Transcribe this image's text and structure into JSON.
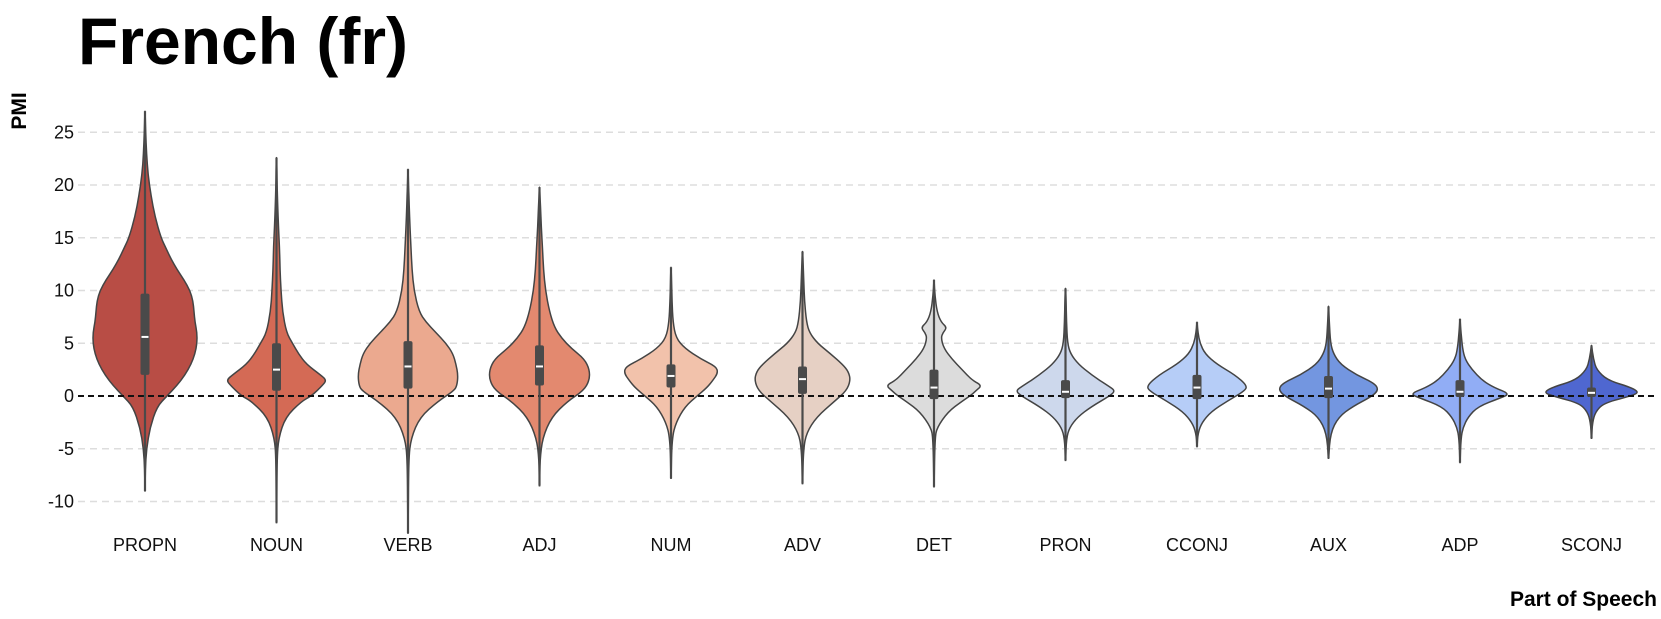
{
  "chart_data": {
    "type": "violin",
    "title": "French (fr)",
    "xlabel": "Part of Speech",
    "ylabel": "PMI",
    "ylim": [
      -14,
      28
    ],
    "yticks": [
      -10,
      -5,
      0,
      5,
      10,
      15,
      20,
      25
    ],
    "reference_line": 0,
    "grid": true,
    "categories": [
      "PROPN",
      "NOUN",
      "VERB",
      "ADJ",
      "NUM",
      "ADV",
      "DET",
      "PRON",
      "CCONJ",
      "AUX",
      "ADP",
      "SCONJ"
    ],
    "series": [
      {
        "name": "PROPN",
        "color": "#b84d45",
        "min": -9,
        "max": 27,
        "q1": 2,
        "median": 5.6,
        "q3": 9.7,
        "profile": [
          [
            -9,
            0.1
          ],
          [
            -7,
            0.3
          ],
          [
            -5,
            1.5
          ],
          [
            -3,
            5
          ],
          [
            -1,
            12
          ],
          [
            0,
            22
          ],
          [
            1,
            32
          ],
          [
            2,
            40
          ],
          [
            3,
            46
          ],
          [
            4,
            50
          ],
          [
            5,
            52
          ],
          [
            6,
            52
          ],
          [
            7,
            50
          ],
          [
            8,
            49
          ],
          [
            9,
            48
          ],
          [
            10,
            45
          ],
          [
            11,
            39
          ],
          [
            12,
            32
          ],
          [
            13,
            26
          ],
          [
            14,
            21
          ],
          [
            15,
            16
          ],
          [
            17,
            10
          ],
          [
            19,
            6
          ],
          [
            21,
            3
          ],
          [
            23,
            1.5
          ],
          [
            25,
            0.7
          ],
          [
            27,
            0.1
          ]
        ]
      },
      {
        "name": "NOUN",
        "color": "#d46a55",
        "min": -12,
        "max": 22.6,
        "q1": 0.5,
        "median": 2.5,
        "q3": 5,
        "profile": [
          [
            -12,
            0.1
          ],
          [
            -6,
            0.5
          ],
          [
            -4,
            2
          ],
          [
            -2,
            9
          ],
          [
            -0.5,
            25
          ],
          [
            0,
            35
          ],
          [
            1,
            46
          ],
          [
            1.5,
            50
          ],
          [
            2,
            44
          ],
          [
            3,
            30
          ],
          [
            4,
            22
          ],
          [
            5,
            16
          ],
          [
            6,
            10
          ],
          [
            8,
            6
          ],
          [
            10,
            4.5
          ],
          [
            12,
            3.5
          ],
          [
            14,
            3
          ],
          [
            16,
            2
          ],
          [
            18,
            1.2
          ],
          [
            20,
            0.6
          ],
          [
            22.6,
            0.1
          ]
        ]
      },
      {
        "name": "VERB",
        "color": "#eba98f",
        "min": -13,
        "max": 21.5,
        "q1": 0.7,
        "median": 2.8,
        "q3": 5.2,
        "profile": [
          [
            -13,
            0.1
          ],
          [
            -6,
            0.6
          ],
          [
            -4,
            3
          ],
          [
            -2,
            12
          ],
          [
            -0.5,
            30
          ],
          [
            0.5,
            46
          ],
          [
            1,
            49
          ],
          [
            2,
            50
          ],
          [
            3,
            48
          ],
          [
            4,
            45
          ],
          [
            5,
            38
          ],
          [
            6,
            28
          ],
          [
            7,
            18
          ],
          [
            8,
            11
          ],
          [
            10,
            6
          ],
          [
            12,
            4
          ],
          [
            14,
            3
          ],
          [
            16,
            2
          ],
          [
            18,
            1.2
          ],
          [
            20,
            0.5
          ],
          [
            21.5,
            0.1
          ]
        ]
      },
      {
        "name": "ADJ",
        "color": "#e3896f",
        "min": -8.5,
        "max": 19.8,
        "q1": 1,
        "median": 2.8,
        "q3": 4.8,
        "profile": [
          [
            -8.5,
            0.1
          ],
          [
            -6,
            0.5
          ],
          [
            -4,
            3
          ],
          [
            -2,
            12
          ],
          [
            -0.5,
            28
          ],
          [
            0.5,
            44
          ],
          [
            1.5,
            50
          ],
          [
            2.5,
            50
          ],
          [
            3.5,
            45
          ],
          [
            4.5,
            32
          ],
          [
            5.5,
            22
          ],
          [
            6.5,
            15
          ],
          [
            8,
            10
          ],
          [
            10,
            6
          ],
          [
            12,
            4
          ],
          [
            14,
            3
          ],
          [
            16,
            1.8
          ],
          [
            18,
            1
          ],
          [
            19.8,
            0.1
          ]
        ]
      },
      {
        "name": "NUM",
        "color": "#f2c2ab",
        "min": -7.8,
        "max": 12.2,
        "q1": 0.8,
        "median": 1.9,
        "q3": 3,
        "profile": [
          [
            -7.8,
            0.1
          ],
          [
            -4,
            1
          ],
          [
            -2.5,
            5
          ],
          [
            -1,
            14
          ],
          [
            0,
            26
          ],
          [
            0.8,
            36
          ],
          [
            1.5,
            42
          ],
          [
            2.2,
            47
          ],
          [
            2.8,
            45
          ],
          [
            3.5,
            30
          ],
          [
            4.5,
            14
          ],
          [
            5.5,
            5
          ],
          [
            7,
            2
          ],
          [
            9,
            1
          ],
          [
            11,
            0.5
          ],
          [
            12.2,
            0.1
          ]
        ]
      },
      {
        "name": "ADV",
        "color": "#e6d0c4",
        "min": -8.3,
        "max": 13.7,
        "q1": 0.2,
        "median": 1.6,
        "q3": 2.8,
        "profile": [
          [
            -8.3,
            0.1
          ],
          [
            -5,
            1
          ],
          [
            -3.5,
            4
          ],
          [
            -2,
            14
          ],
          [
            -0.5,
            32
          ],
          [
            0.5,
            44
          ],
          [
            1.5,
            48
          ],
          [
            2.3,
            46
          ],
          [
            3,
            40
          ],
          [
            4,
            28
          ],
          [
            5,
            15
          ],
          [
            6,
            7
          ],
          [
            7,
            4
          ],
          [
            9,
            2
          ],
          [
            11,
            1.2
          ],
          [
            13.7,
            0.1
          ]
        ]
      },
      {
        "name": "DET",
        "color": "#dcdcdc",
        "min": -8.6,
        "max": 11,
        "q1": -0.3,
        "median": 0.8,
        "q3": 2.5,
        "profile": [
          [
            -8.6,
            0.1
          ],
          [
            -4,
            1
          ],
          [
            -3,
            3
          ],
          [
            -1.5,
            14
          ],
          [
            -0.5,
            28
          ],
          [
            0,
            36
          ],
          [
            0.5,
            42
          ],
          [
            1,
            48
          ],
          [
            1.5,
            38
          ],
          [
            2.5,
            28
          ],
          [
            3.5,
            18
          ],
          [
            4.5,
            10
          ],
          [
            5.5,
            7
          ],
          [
            6,
            9
          ],
          [
            6.5,
            13
          ],
          [
            7,
            7
          ],
          [
            8,
            3
          ],
          [
            9.5,
            1
          ],
          [
            11,
            0.1
          ]
        ]
      },
      {
        "name": "PRON",
        "color": "#cdd8ec",
        "min": -6.1,
        "max": 10.2,
        "q1": -0.2,
        "median": 0.4,
        "q3": 1.5,
        "profile": [
          [
            -6.1,
            0.1
          ],
          [
            -4,
            1
          ],
          [
            -3,
            4
          ],
          [
            -2,
            12
          ],
          [
            -1,
            26
          ],
          [
            0,
            44
          ],
          [
            0.5,
            50
          ],
          [
            1,
            42
          ],
          [
            2,
            26
          ],
          [
            3,
            13
          ],
          [
            4,
            5
          ],
          [
            5,
            2
          ],
          [
            7,
            1
          ],
          [
            9,
            0.6
          ],
          [
            10.2,
            0.1
          ]
        ]
      },
      {
        "name": "CCONJ",
        "color": "#b6cdf7",
        "min": -4.8,
        "max": 7,
        "q1": -0.3,
        "median": 0.8,
        "q3": 2,
        "profile": [
          [
            -4.8,
            0.1
          ],
          [
            -3.5,
            1
          ],
          [
            -2.5,
            5
          ],
          [
            -1.5,
            14
          ],
          [
            -0.5,
            30
          ],
          [
            0.5,
            48
          ],
          [
            1,
            50
          ],
          [
            2,
            38
          ],
          [
            3,
            20
          ],
          [
            4,
            8
          ],
          [
            5,
            3
          ],
          [
            6,
            1
          ],
          [
            7,
            0.1
          ]
        ]
      },
      {
        "name": "AUX",
        "color": "#7396e0",
        "min": -5.9,
        "max": 8.5,
        "q1": -0.2,
        "median": 0.7,
        "q3": 1.9,
        "profile": [
          [
            -5.9,
            0.1
          ],
          [
            -3.5,
            2
          ],
          [
            -2,
            10
          ],
          [
            -1,
            24
          ],
          [
            0,
            44
          ],
          [
            0.6,
            50
          ],
          [
            1.2,
            46
          ],
          [
            2,
            28
          ],
          [
            3,
            12
          ],
          [
            4,
            5
          ],
          [
            5,
            2
          ],
          [
            7,
            0.8
          ],
          [
            8.5,
            0.1
          ]
        ]
      },
      {
        "name": "ADP",
        "color": "#91adf5",
        "min": -6.3,
        "max": 7.3,
        "q1": -0.1,
        "median": 0.4,
        "q3": 1.5,
        "profile": [
          [
            -6.3,
            0.1
          ],
          [
            -4,
            1
          ],
          [
            -3,
            3
          ],
          [
            -2,
            8
          ],
          [
            -1,
            18
          ],
          [
            -0.2,
            40
          ],
          [
            0.2,
            50
          ],
          [
            0.8,
            34
          ],
          [
            1.5,
            22
          ],
          [
            2.5,
            12
          ],
          [
            3.5,
            5
          ],
          [
            4.5,
            2.5
          ],
          [
            6,
            1
          ],
          [
            7.3,
            0.1
          ]
        ]
      },
      {
        "name": "SCONJ",
        "color": "#4f67d0",
        "min": -4,
        "max": 4.8,
        "q1": -0.1,
        "median": 0.3,
        "q3": 0.8,
        "profile": [
          [
            -4,
            0.1
          ],
          [
            -2.5,
            1
          ],
          [
            -1.5,
            4
          ],
          [
            -0.7,
            12
          ],
          [
            -0.1,
            35
          ],
          [
            0.3,
            48
          ],
          [
            0.8,
            40
          ],
          [
            1.5,
            16
          ],
          [
            2.5,
            5
          ],
          [
            3.5,
            2
          ],
          [
            4.8,
            0.1
          ]
        ]
      }
    ]
  }
}
